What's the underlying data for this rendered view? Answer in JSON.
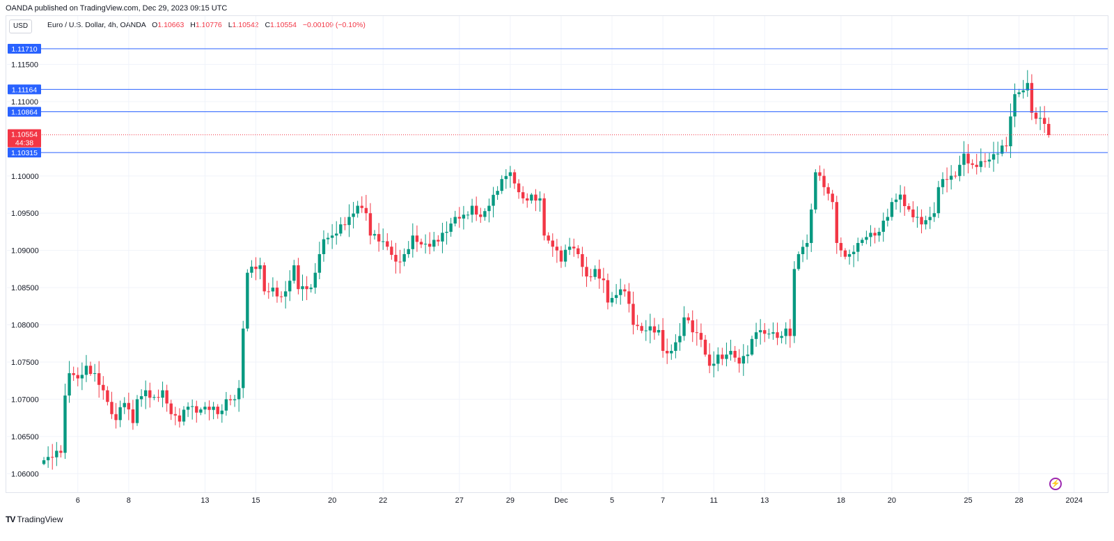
{
  "header": {
    "published": "OANDA published on TradingView.com, Dec 29, 2023 09:15 UTC",
    "currency": "USD",
    "symbol": "Euro / U.S. Dollar, 4h, OANDA",
    "o_label": "O",
    "o_value": "1.10663",
    "h_label": "H",
    "h_value": "1.10776",
    "l_label": "L",
    "l_value": "1.10542",
    "c_label": "C",
    "c_value": "1.10554",
    "change": "−0.00109 (−0.10%)"
  },
  "footer": {
    "brand": "TradingView"
  },
  "colors": {
    "up": "#089981",
    "down": "#f23645",
    "level": "#2962ff",
    "price": "#f23645"
  },
  "chart_data": {
    "type": "candlestick",
    "interval": "4h",
    "ylim": [
      1.0575,
      1.1215
    ],
    "y_ticks": [
      {
        "value": 1.115,
        "label": "1.11500"
      },
      {
        "value": 1.11,
        "label": "1.11000"
      },
      {
        "value": 1.1,
        "label": "1.10000"
      },
      {
        "value": 1.095,
        "label": "1.09500"
      },
      {
        "value": 1.09,
        "label": "1.09000"
      },
      {
        "value": 1.085,
        "label": "1.08500"
      },
      {
        "value": 1.08,
        "label": "1.08000"
      },
      {
        "value": 1.075,
        "label": "1.07500"
      },
      {
        "value": 1.07,
        "label": "1.07000"
      },
      {
        "value": 1.065,
        "label": "1.06500"
      },
      {
        "value": 1.06,
        "label": "1.06000"
      }
    ],
    "x_ticks": [
      {
        "index": 8,
        "label": "6"
      },
      {
        "index": 20,
        "label": "8"
      },
      {
        "index": 38,
        "label": "13"
      },
      {
        "index": 50,
        "label": "15"
      },
      {
        "index": 68,
        "label": "20"
      },
      {
        "index": 80,
        "label": "22"
      },
      {
        "index": 98,
        "label": "27"
      },
      {
        "index": 110,
        "label": "29"
      },
      {
        "index": 122,
        "label": "Dec"
      },
      {
        "index": 134,
        "label": "5"
      },
      {
        "index": 146,
        "label": "7"
      },
      {
        "index": 158,
        "label": "11"
      },
      {
        "index": 170,
        "label": "13"
      },
      {
        "index": 188,
        "label": "18"
      },
      {
        "index": 200,
        "label": "20"
      },
      {
        "index": 218,
        "label": "25"
      },
      {
        "index": 230,
        "label": "28"
      },
      {
        "index": 243,
        "label": "2024"
      }
    ],
    "horizontal_levels": [
      {
        "value": 1.1171,
        "label": "1.11710"
      },
      {
        "value": 1.11164,
        "label": "1.11164"
      },
      {
        "value": 1.10864,
        "label": "1.10864"
      },
      {
        "value": 1.10315,
        "label": "1.10315"
      }
    ],
    "last_price": {
      "value": 1.10554,
      "label": "1.10554",
      "countdown": "44:38"
    },
    "close_keypoints": [
      [
        0,
        1.0618
      ],
      [
        2,
        1.0622
      ],
      [
        4,
        1.0628
      ],
      [
        5,
        1.0705
      ],
      [
        6,
        1.0735
      ],
      [
        8,
        1.0728
      ],
      [
        10,
        1.0745
      ],
      [
        12,
        1.0735
      ],
      [
        14,
        1.0712
      ],
      [
        16,
        1.068
      ],
      [
        17,
        1.0672
      ],
      [
        19,
        1.0695
      ],
      [
        21,
        1.0668
      ],
      [
        22,
        1.07
      ],
      [
        24,
        1.0712
      ],
      [
        26,
        1.0703
      ],
      [
        28,
        1.0712
      ],
      [
        30,
        1.068
      ],
      [
        32,
        1.067
      ],
      [
        34,
        1.069
      ],
      [
        36,
        1.0682
      ],
      [
        38,
        1.069
      ],
      [
        40,
        1.069
      ],
      [
        41,
        1.068
      ],
      [
        43,
        1.07
      ],
      [
        45,
        1.07
      ],
      [
        46,
        1.0715
      ],
      [
        47,
        1.0795
      ],
      [
        48,
        1.087
      ],
      [
        50,
        1.0875
      ],
      [
        51,
        1.088
      ],
      [
        52,
        1.0845
      ],
      [
        54,
        1.085
      ],
      [
        56,
        1.0838
      ],
      [
        57,
        1.0845
      ],
      [
        59,
        1.088
      ],
      [
        60,
        1.0848
      ],
      [
        62,
        1.0848
      ],
      [
        63,
        1.085
      ],
      [
        64,
        1.087
      ],
      [
        65,
        1.0895
      ],
      [
        66,
        1.0915
      ],
      [
        68,
        1.092
      ],
      [
        70,
        1.0935
      ],
      [
        72,
        1.0945
      ],
      [
        74,
        1.096
      ],
      [
        76,
        1.095
      ],
      [
        77,
        1.092
      ],
      [
        79,
        1.0912
      ],
      [
        81,
        1.0905
      ],
      [
        83,
        1.0885
      ],
      [
        85,
        1.0895
      ],
      [
        87,
        1.092
      ],
      [
        89,
        1.0908
      ],
      [
        91,
        1.0905
      ],
      [
        93,
        1.0912
      ],
      [
        95,
        1.0925
      ],
      [
        97,
        1.0945
      ],
      [
        99,
        1.0948
      ],
      [
        101,
        1.096
      ],
      [
        103,
        1.0945
      ],
      [
        105,
        1.096
      ],
      [
        107,
        1.098
      ],
      [
        109,
        1.1
      ],
      [
        110,
        1.1005
      ],
      [
        111,
        1.099
      ],
      [
        113,
        1.097
      ],
      [
        115,
        1.0975
      ],
      [
        117,
        1.097
      ],
      [
        118,
        1.092
      ],
      [
        120,
        1.0905
      ],
      [
        122,
        1.0885
      ],
      [
        124,
        1.0905
      ],
      [
        126,
        1.0895
      ],
      [
        128,
        1.0865
      ],
      [
        130,
        1.0875
      ],
      [
        132,
        1.086
      ],
      [
        133,
        1.083
      ],
      [
        135,
        1.084
      ],
      [
        137,
        1.0845
      ],
      [
        139,
        1.08
      ],
      [
        141,
        1.0792
      ],
      [
        143,
        1.0798
      ],
      [
        145,
        1.0793
      ],
      [
        146,
        1.0765
      ],
      [
        148,
        1.0765
      ],
      [
        150,
        1.0785
      ],
      [
        151,
        1.081
      ],
      [
        153,
        1.079
      ],
      [
        155,
        1.078
      ],
      [
        156,
        1.076
      ],
      [
        157,
        1.0745
      ],
      [
        159,
        1.076
      ],
      [
        161,
        1.076
      ],
      [
        162,
        1.0765
      ],
      [
        164,
        1.0748
      ],
      [
        166,
        1.076
      ],
      [
        168,
        1.079
      ],
      [
        170,
        1.0788
      ],
      [
        172,
        1.079
      ],
      [
        174,
        1.0785
      ],
      [
        175,
        1.0795
      ],
      [
        176,
        1.0785
      ],
      [
        177,
        1.0875
      ],
      [
        178,
        1.0895
      ],
      [
        180,
        1.091
      ],
      [
        181,
        1.0955
      ],
      [
        182,
        1.1005
      ],
      [
        184,
        1.0985
      ],
      [
        186,
        1.0965
      ],
      [
        187,
        1.091
      ],
      [
        188,
        1.09
      ],
      [
        190,
        1.0895
      ],
      [
        192,
        1.091
      ],
      [
        194,
        1.0918
      ],
      [
        196,
        1.092
      ],
      [
        197,
        1.0925
      ],
      [
        199,
        1.0945
      ],
      [
        200,
        1.0965
      ],
      [
        202,
        1.0975
      ],
      [
        204,
        1.0955
      ],
      [
        206,
        1.0945
      ],
      [
        207,
        1.0935
      ],
      [
        209,
        1.0945
      ],
      [
        210,
        1.095
      ],
      [
        211,
        1.0985
      ],
      [
        213,
        1.0995
      ],
      [
        215,
        1.1
      ],
      [
        216,
        1.1015
      ],
      [
        217,
        1.103
      ],
      [
        219,
        1.1015
      ],
      [
        221,
        1.102
      ],
      [
        223,
        1.1022
      ],
      [
        225,
        1.103
      ],
      [
        227,
        1.104
      ],
      [
        228,
        1.108
      ],
      [
        229,
        1.111
      ],
      [
        231,
        1.1115
      ],
      [
        232,
        1.1125
      ],
      [
        233,
        1.1085
      ],
      [
        234,
        1.1077
      ],
      [
        235,
        1.1078
      ],
      [
        236,
        1.107
      ],
      [
        237,
        1.1055
      ]
    ]
  }
}
